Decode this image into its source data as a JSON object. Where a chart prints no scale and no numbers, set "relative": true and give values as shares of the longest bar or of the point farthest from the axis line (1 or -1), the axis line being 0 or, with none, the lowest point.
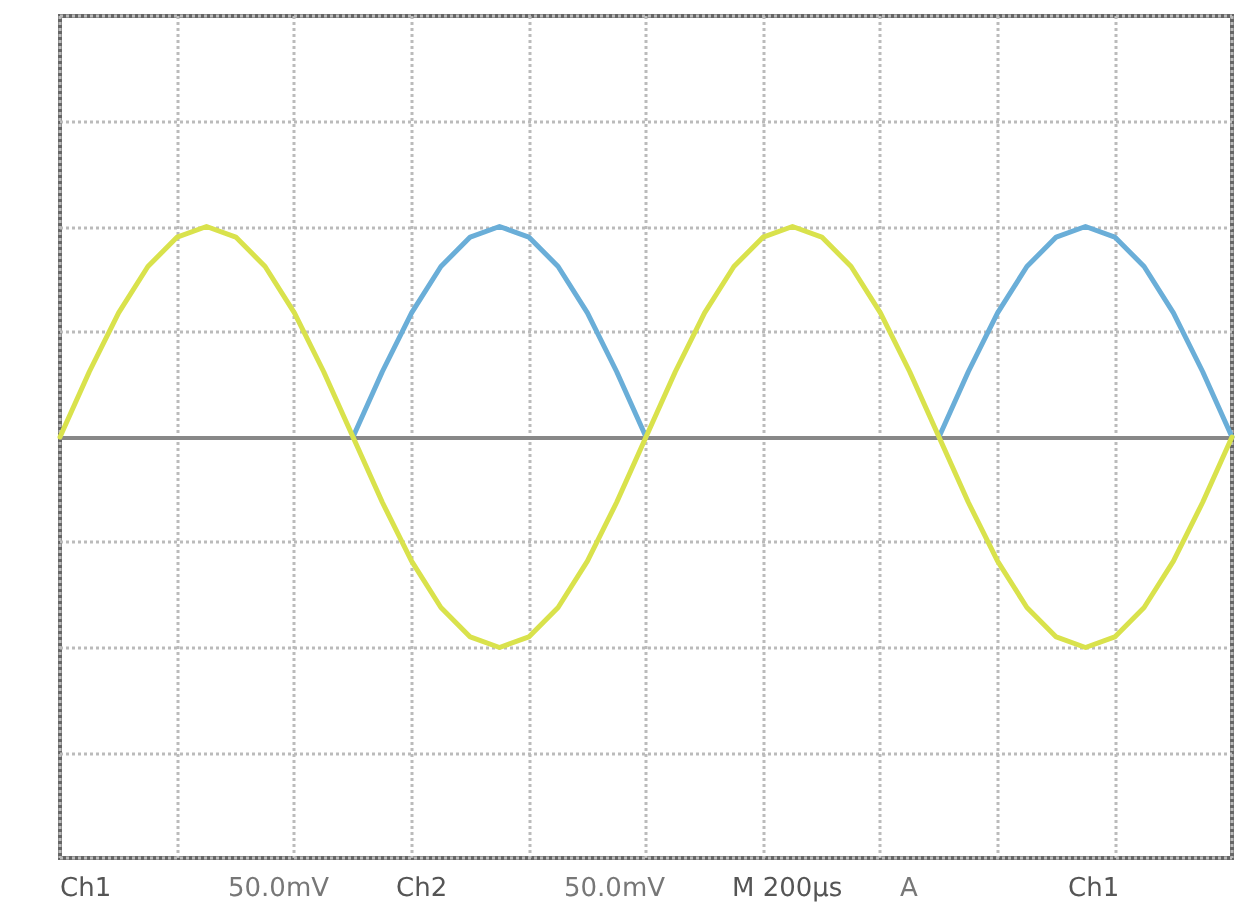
{
  "chart_data": {
    "type": "line",
    "relative": true,
    "grid": true,
    "marker": "none",
    "line_style": "solid",
    "categories": [
      null,
      null,
      null,
      null,
      null,
      null,
      null,
      null,
      null,
      null,
      null,
      null,
      null,
      null,
      null,
      null,
      null,
      null,
      null,
      null,
      null,
      null,
      null,
      null,
      null,
      null,
      null,
      null,
      null,
      null,
      null,
      null,
      null,
      null,
      null,
      null,
      null,
      null,
      null,
      null,
      null
    ],
    "series": [
      {
        "color": "#d9e24c",
        "values": [
          0,
          0.31,
          0.59,
          0.81,
          0.95,
          1,
          0.95,
          0.81,
          0.59,
          0.31,
          0,
          -0.31,
          -0.59,
          -0.81,
          -0.95,
          -1,
          -0.95,
          -0.81,
          -0.59,
          -0.31,
          0,
          0.31,
          0.59,
          0.81,
          0.95,
          1,
          0.95,
          0.81,
          0.59,
          0.31,
          0,
          -0.31,
          -0.59,
          -0.81,
          -0.95,
          -1,
          -0.95,
          -0.81,
          -0.59,
          -0.31,
          0
        ]
      },
      {
        "color": "#6aaed8",
        "values": [
          null,
          null,
          null,
          null,
          null,
          null,
          null,
          null,
          null,
          null,
          0,
          0.31,
          0.59,
          0.81,
          0.95,
          1,
          0.95,
          0.81,
          0.59,
          0.31,
          0,
          null,
          null,
          null,
          null,
          null,
          null,
          null,
          null,
          null,
          0,
          0.31,
          0.59,
          0.81,
          0.95,
          1,
          0.95,
          0.81,
          0.59,
          0.31,
          0
        ]
      }
    ],
    "annotations": [
      "Ch1",
      "50.0mV",
      "Ch2",
      "50.0mV",
      "M 200µs",
      "A",
      "Ch1"
    ]
  }
}
